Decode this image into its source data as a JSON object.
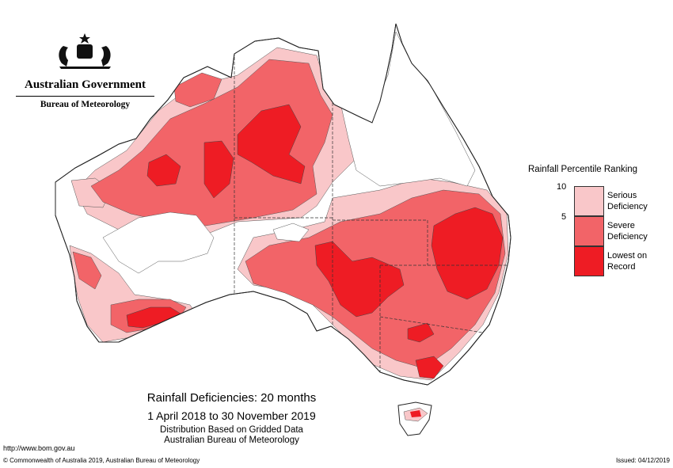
{
  "agency": {
    "government": "Australian Government",
    "bureau": "Bureau of Meteorology"
  },
  "legend": {
    "title": "Rainfall Percentile Ranking",
    "tick_top": "10",
    "tick_mid": "5",
    "categories": [
      {
        "label_line1": "Serious",
        "label_line2": "Deficiency",
        "color": "#f9c7c9"
      },
      {
        "label_line1": "Severe",
        "label_line2": "Deficiency",
        "color": "#f26468"
      },
      {
        "label_line1": "Lowest on",
        "label_line2": "Record",
        "color": "#ee1c24"
      }
    ]
  },
  "caption": {
    "title": "Rainfall Deficiencies: 20 months",
    "period": "1 April 2018 to 30 November 2019",
    "line3": "Distribution Based on Gridded Data",
    "line4": "Australian Bureau of Meteorology"
  },
  "footer": {
    "url": "http://www.bom.gov.au",
    "copyright": "© Commonwealth of Australia 2019, Australian Bureau of Meteorology",
    "issued": "Issued: 04/12/2019"
  },
  "colors": {
    "serious": "#f9c7c9",
    "severe": "#f26468",
    "lowest": "#ee1c24",
    "land": "#ffffff",
    "outline": "#333333"
  }
}
